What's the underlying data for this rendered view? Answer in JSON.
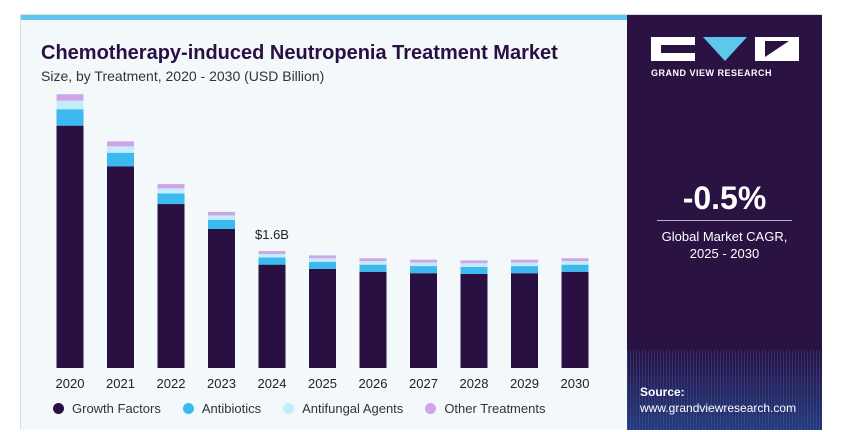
{
  "header": {
    "title": "Chemotherapy-induced Neutropenia Treatment Market",
    "subtitle": "Size, by Treatment, 2020 - 2030 (USD Billion)"
  },
  "brand": {
    "name": "GRAND VIEW RESEARCH",
    "logo_icon": "gvr-logo-icon"
  },
  "side_panel": {
    "cagr_value": "-0.5%",
    "cagr_label_line1": "Global Market CAGR,",
    "cagr_label_line2": "2025 - 2030",
    "source_title": "Source:",
    "source_url": "www.grandviewresearch.com"
  },
  "colors": {
    "growth_factors": "#2a0f42",
    "antibiotics": "#3cb9ef",
    "antifungal_agents": "#c4ecfb",
    "other_treatments": "#cfa4e8",
    "side_panel": "#2a1243",
    "accent": "#5ec8ec"
  },
  "chart_data": {
    "type": "bar",
    "stacked": true,
    "title": "Chemotherapy-induced Neutropenia Treatment Market",
    "subtitle": "Size, by Treatment, 2020 - 2030 (USD Billion)",
    "categories": [
      "2020",
      "2021",
      "2022",
      "2023",
      "2024",
      "2025",
      "2026",
      "2027",
      "2028",
      "2029",
      "2030"
    ],
    "series": [
      {
        "name": "Growth Factors",
        "values": [
          3.4,
          2.83,
          2.3,
          1.95,
          1.45,
          1.39,
          1.35,
          1.33,
          1.32,
          1.33,
          1.35
        ]
      },
      {
        "name": "Antibiotics",
        "values": [
          0.23,
          0.19,
          0.15,
          0.13,
          0.1,
          0.1,
          0.1,
          0.1,
          0.1,
          0.1,
          0.1
        ]
      },
      {
        "name": "Antifungal Agents",
        "values": [
          0.12,
          0.09,
          0.07,
          0.06,
          0.05,
          0.05,
          0.05,
          0.05,
          0.05,
          0.05,
          0.05
        ]
      },
      {
        "name": "Other Treatments",
        "values": [
          0.09,
          0.07,
          0.06,
          0.05,
          0.04,
          0.04,
          0.04,
          0.04,
          0.04,
          0.04,
          0.04
        ]
      }
    ],
    "annotations": [
      {
        "category": "2024",
        "label": "$1.6B"
      }
    ],
    "legend_position": "bottom",
    "grid": false,
    "ylim": [
      0,
      3.9
    ]
  }
}
